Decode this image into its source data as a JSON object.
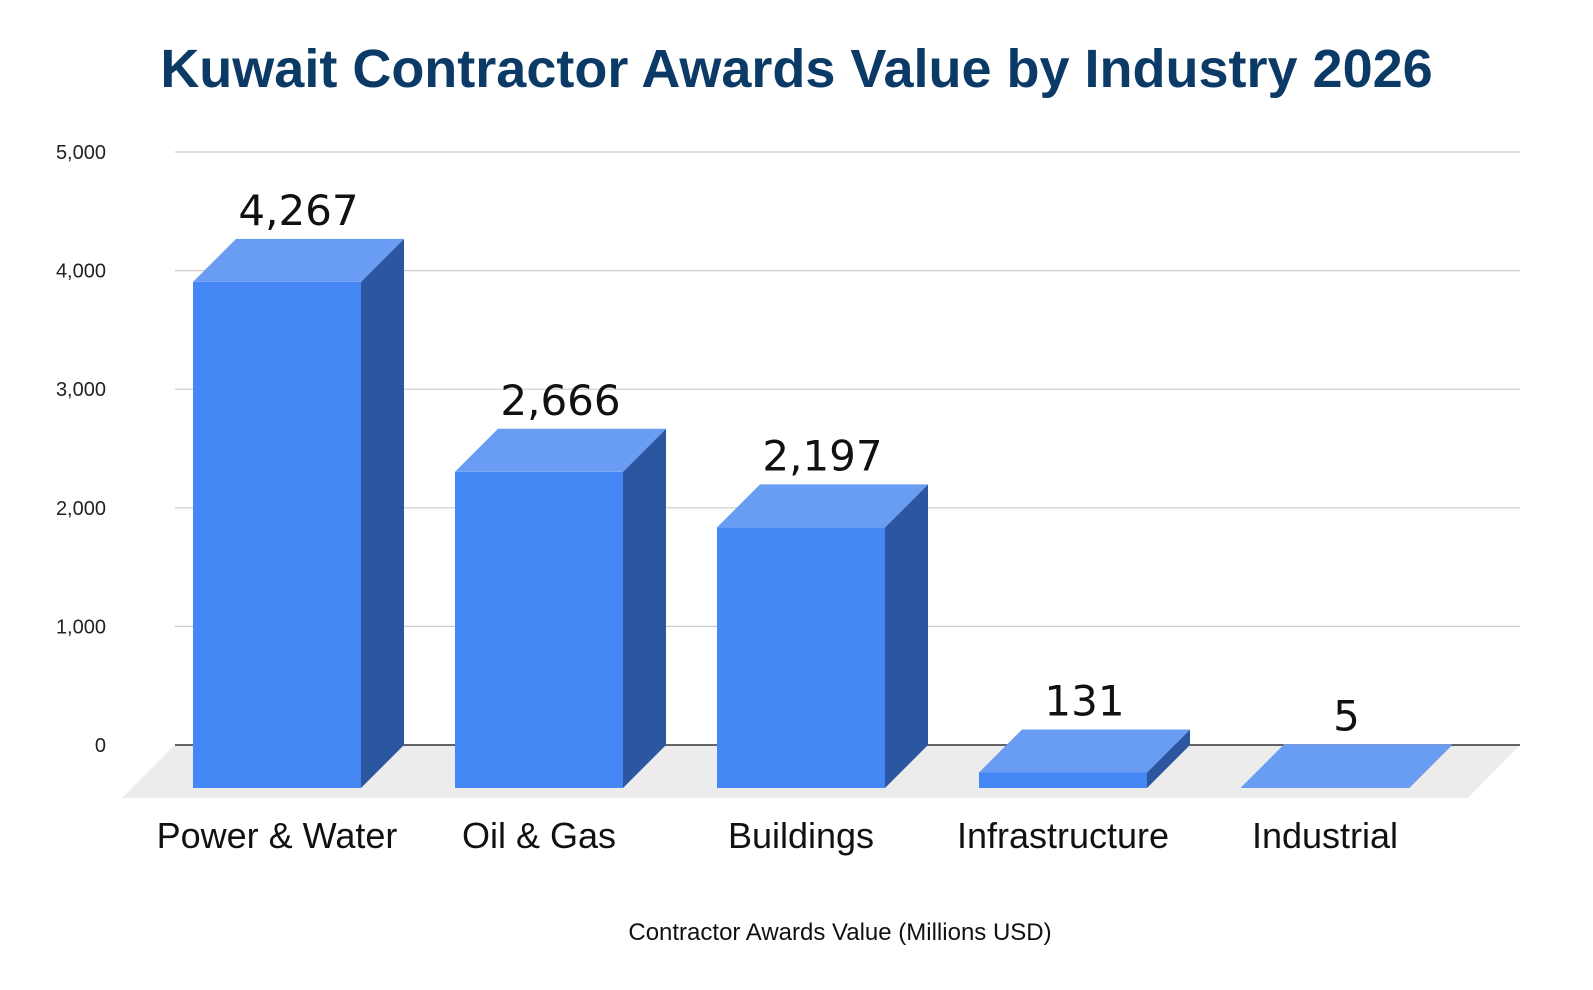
{
  "chart_data": {
    "type": "bar",
    "title": "Kuwait Contractor Awards Value by Industry 2026",
    "xlabel": "Contractor Awards Value (Millions USD)",
    "ylabel": "",
    "ylim": [
      0,
      5000
    ],
    "yticks": [
      "0",
      "1,000",
      "2,000",
      "3,000",
      "4,000",
      "5,000"
    ],
    "ytick_values": [
      0,
      1000,
      2000,
      3000,
      4000,
      5000
    ],
    "categories": [
      "Power & Water",
      "Oil & Gas",
      "Buildings",
      "Infrastructure",
      "Industrial"
    ],
    "values": [
      4267,
      2666,
      2197,
      131,
      5
    ],
    "value_labels": [
      "4,267",
      "2,666",
      "2,197",
      "131",
      "5"
    ],
    "grid": true,
    "style": "3d",
    "colors": {
      "front": "#4587f5",
      "top": "#699cf3",
      "side": "#2c56a0",
      "floor": "#ececec",
      "grid": "#cccccc",
      "axis": "#333333",
      "title": "#0b3a66"
    }
  }
}
